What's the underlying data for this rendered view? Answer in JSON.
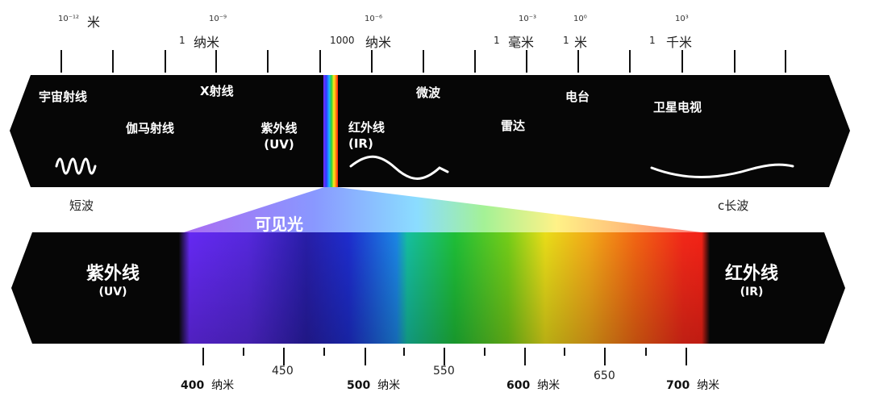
{
  "top_scale": {
    "marks": [
      {
        "sup": "10⁻¹²",
        "prefix": "",
        "unit": "米"
      },
      {
        "sup": "10⁻⁹",
        "prefix": "1",
        "unit": "纳米"
      },
      {
        "sup": "10⁻⁶",
        "prefix": "1000",
        "unit": "纳米"
      },
      {
        "sup": "10⁻³",
        "prefix": "1",
        "unit": "毫米"
      },
      {
        "sup": "10⁰",
        "prefix": "1",
        "unit": "米"
      },
      {
        "sup": "10³",
        "prefix": "1",
        "unit": "千米"
      }
    ]
  },
  "spectrum_bands": {
    "cosmic": "宇宙射线",
    "gamma": "伽马射线",
    "xray": "X射线",
    "uv": "紫外线",
    "uv_abbr": "(UV)",
    "ir": "红外线",
    "ir_abbr": "(IR)",
    "microwave": "微波",
    "radar": "雷达",
    "radio": "电台",
    "satellite_tv": "卫星电视"
  },
  "side_labels": {
    "short_wave": "短波",
    "long_wave": "c长波"
  },
  "visible": {
    "label": "可见光",
    "uv_label": "紫外线",
    "uv_abbr": "(UV)",
    "ir_label": "红外线",
    "ir_abbr": "(IR)"
  },
  "nm_scale": {
    "major": [
      {
        "value": "400",
        "unit": "纳米"
      },
      {
        "value": "500",
        "unit": "纳米"
      },
      {
        "value": "600",
        "unit": "纳米"
      },
      {
        "value": "700",
        "unit": "纳米"
      }
    ],
    "minor": [
      "450",
      "550",
      "650"
    ]
  }
}
